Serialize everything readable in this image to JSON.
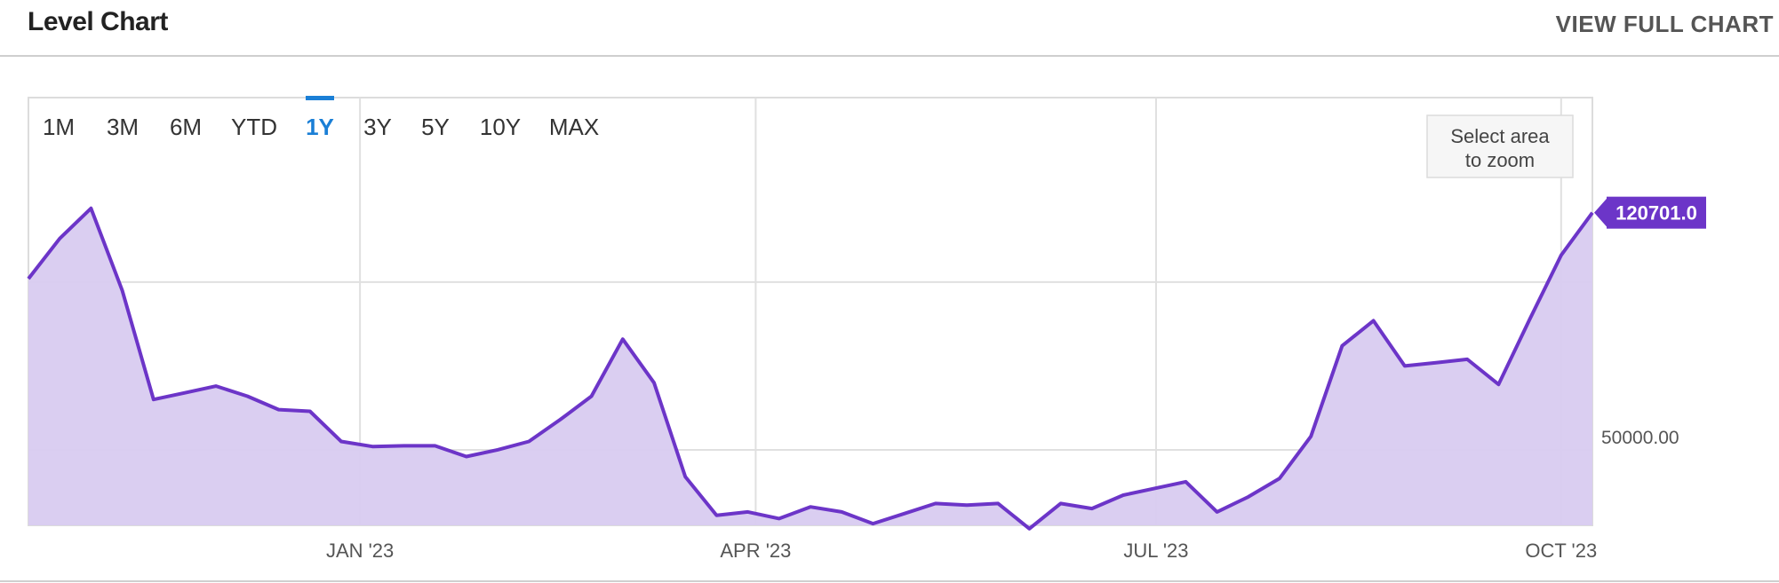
{
  "header": {
    "title": "Level Chart",
    "view_full_label": "VIEW FULL CHART"
  },
  "range_buttons": [
    {
      "label": "1M",
      "active": false
    },
    {
      "label": "3M",
      "active": false
    },
    {
      "label": "6M",
      "active": false
    },
    {
      "label": "YTD",
      "active": false
    },
    {
      "label": "1Y",
      "active": true
    },
    {
      "label": "3Y",
      "active": false
    },
    {
      "label": "5Y",
      "active": false
    },
    {
      "label": "10Y",
      "active": false
    },
    {
      "label": "MAX",
      "active": false
    }
  ],
  "zoom_hint": [
    "Select area",
    "to zoom"
  ],
  "colors": {
    "line": "#6c35c8",
    "fill": "#d8cbf0",
    "active_button": "#1a7fd6",
    "last_value_badge": "#6c35c8",
    "grid": "#e0e0e0"
  },
  "chart_data": {
    "type": "area",
    "series": [
      {
        "values": [
          101000,
          113000,
          122000,
          97500,
          65000,
          67000,
          69000,
          66000,
          62000,
          61500,
          52500,
          51000,
          51200,
          51200,
          48000,
          50000,
          52500,
          59000,
          66000,
          83000,
          70000,
          42000,
          30500,
          31500,
          29500,
          33000,
          31500,
          28000,
          31000,
          34000,
          33500,
          34000,
          26500,
          34000,
          32500,
          36500,
          38500,
          40500,
          31500,
          36000,
          41500,
          54000,
          81000,
          88500,
          75000,
          76000,
          77000,
          69500,
          89000,
          108000,
          120701
        ]
      }
    ],
    "x_ticks": [
      "JAN '23",
      "APR '23",
      "JUL '23",
      "OCT '23"
    ],
    "x_tick_index": [
      10.6,
      23.25,
      36.05,
      49
    ],
    "y_ticks": [
      50000
    ],
    "y_tick_labels": [
      "50000.00"
    ],
    "ylim": [
      27500,
      155000
    ],
    "last_value_label": "120701.0",
    "grid": true
  }
}
